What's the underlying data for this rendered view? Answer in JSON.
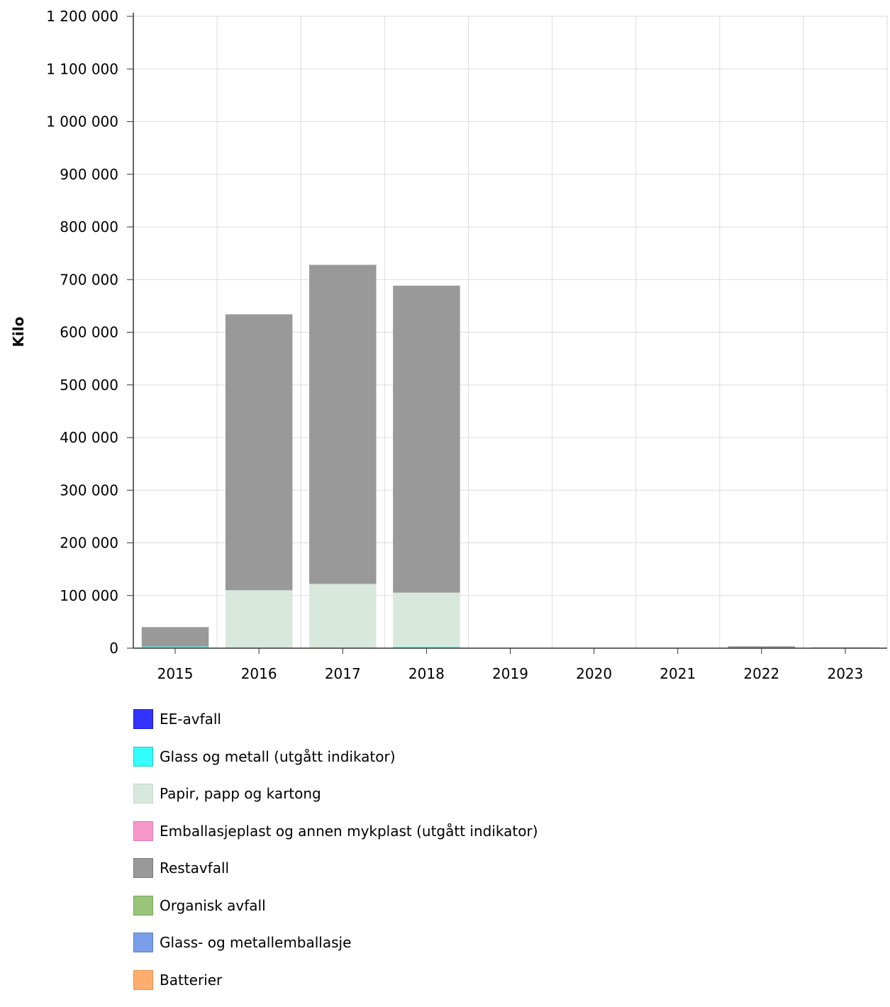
{
  "chart_data": {
    "type": "bar",
    "stacked": true,
    "title": "",
    "xlabel": "",
    "ylabel": "Kilo",
    "ylim": [
      0,
      1200000
    ],
    "yticks": [
      0,
      100000,
      200000,
      300000,
      400000,
      500000,
      600000,
      700000,
      800000,
      900000,
      1000000,
      1100000,
      1200000
    ],
    "ytick_labels": [
      "0",
      "100 000",
      "200 000",
      "300 000",
      "400 000",
      "500 000",
      "600 000",
      "700 000",
      "800 000",
      "900 000",
      "1 000 000",
      "1 100 000",
      "1 200 000"
    ],
    "grid": true,
    "legend_position": "bottom",
    "categories": [
      "2015",
      "2016",
      "2017",
      "2018",
      "2019",
      "2020",
      "2021",
      "2022",
      "2023"
    ],
    "series": [
      {
        "name": "EE-avfall",
        "color": "#3333ff",
        "border": "#1a1acc",
        "values": [
          0,
          0,
          0,
          0,
          0,
          0,
          0,
          0,
          0
        ]
      },
      {
        "name": "Glass og metall (utgått indikator)",
        "color": "#33ffff",
        "border": "#19cccc",
        "values": [
          3000,
          0,
          0,
          2500,
          0,
          0,
          0,
          0,
          0
        ]
      },
      {
        "name": "Papir, papp og kartong",
        "color": "#d9e8dc",
        "border": "#c5d8c8",
        "values": [
          0,
          110000,
          122000,
          103000,
          0,
          0,
          0,
          0,
          0
        ]
      },
      {
        "name": "Emballasjeplast og annen mykplast (utgått indikator)",
        "color": "#f599cc",
        "border": "#e07aae",
        "values": [
          0,
          0,
          0,
          0,
          0,
          0,
          0,
          0,
          0
        ]
      },
      {
        "name": "Restavfall",
        "color": "#999999",
        "border": "#7a7a7a",
        "values": [
          37000,
          524000,
          606000,
          583000,
          0,
          0,
          0,
          3500,
          0
        ]
      },
      {
        "name": "Organisk avfall",
        "color": "#99c47a",
        "border": "#7aa85c",
        "values": [
          0,
          0,
          0,
          0,
          0,
          0,
          0,
          0,
          1500
        ]
      },
      {
        "name": "Glass- og metallemballasje",
        "color": "#7a9ee8",
        "border": "#5c80cc",
        "values": [
          0,
          0,
          0,
          0,
          0,
          0,
          0,
          0,
          0
        ]
      },
      {
        "name": "Batterier",
        "color": "#ffad6e",
        "border": "#e89050",
        "values": [
          0,
          0,
          0,
          0,
          0,
          0,
          0,
          0,
          0
        ]
      }
    ]
  }
}
